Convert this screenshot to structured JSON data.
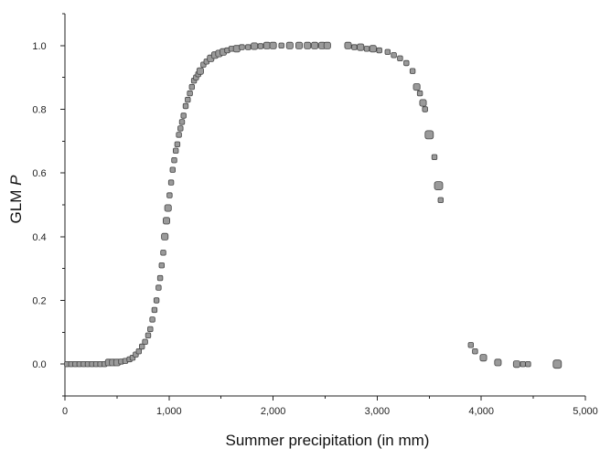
{
  "chart_data": {
    "type": "scatter",
    "title": "",
    "xlabel": "Summer precipitation (in mm)",
    "ylabel_main": "GLM ",
    "ylabel_italic": "P",
    "xlim": [
      0,
      5000
    ],
    "ylim": [
      -0.1,
      1.1
    ],
    "x_ticks": [
      0,
      1000,
      2000,
      3000,
      4000,
      5000
    ],
    "x_tick_labels": [
      "0",
      "1,000",
      "2,000",
      "3,000",
      "4,000",
      "5,000"
    ],
    "y_ticks": [
      0.0,
      0.2,
      0.4,
      0.6,
      0.8,
      1.0
    ],
    "y_tick_labels": [
      "0.0",
      "0.2",
      "0.4",
      "0.6",
      "0.8",
      "1.0"
    ],
    "grid": false,
    "legend": "none",
    "marker_color": "#9a9a9a",
    "marker_edge_color": "#444444",
    "series": [
      {
        "x": [
          20,
          60,
          100,
          140,
          180,
          220,
          260,
          300,
          340,
          380,
          420,
          460,
          500,
          540,
          580,
          620,
          650,
          680,
          710,
          740,
          770,
          800,
          820,
          840,
          860,
          880,
          900,
          915,
          930,
          945,
          960,
          975,
          990,
          1005,
          1020,
          1035,
          1050,
          1065,
          1080,
          1095,
          1110,
          1125,
          1140,
          1160,
          1180,
          1200,
          1220,
          1240,
          1260,
          1280,
          1300,
          1330,
          1360,
          1400,
          1440,
          1480,
          1520,
          1560,
          1600,
          1650,
          1700,
          1760,
          1820,
          1880,
          1940,
          2000,
          2080,
          2160,
          2250,
          2330,
          2400,
          2470,
          2520,
          2720,
          2780,
          2840,
          2900,
          2960,
          3020,
          3100,
          3160,
          3220,
          3280,
          3340,
          3380,
          3410,
          3440,
          3460,
          3500,
          3550,
          3590,
          3610,
          3900,
          3940,
          4020,
          4160,
          4340,
          4400,
          4450,
          4730
        ],
        "y": [
          0.0,
          0.0,
          0.0,
          0.0,
          0.0,
          0.0,
          0.0,
          0.0,
          0.0,
          0.0,
          0.005,
          0.005,
          0.005,
          0.008,
          0.01,
          0.015,
          0.02,
          0.03,
          0.04,
          0.055,
          0.07,
          0.09,
          0.11,
          0.14,
          0.17,
          0.2,
          0.24,
          0.27,
          0.31,
          0.35,
          0.4,
          0.45,
          0.49,
          0.53,
          0.57,
          0.61,
          0.64,
          0.67,
          0.69,
          0.72,
          0.74,
          0.76,
          0.78,
          0.81,
          0.83,
          0.85,
          0.87,
          0.89,
          0.9,
          0.91,
          0.92,
          0.94,
          0.95,
          0.96,
          0.97,
          0.975,
          0.98,
          0.985,
          0.99,
          0.99,
          0.995,
          0.995,
          0.998,
          0.998,
          1.0,
          1.0,
          1.0,
          1.0,
          1.0,
          1.0,
          1.0,
          1.0,
          1.0,
          1.0,
          0.995,
          0.995,
          0.99,
          0.99,
          0.985,
          0.98,
          0.97,
          0.96,
          0.945,
          0.92,
          0.87,
          0.85,
          0.82,
          0.8,
          0.72,
          0.65,
          0.56,
          0.515,
          0.06,
          0.04,
          0.02,
          0.005,
          0.0,
          0.0,
          0.0,
          0.0
        ],
        "size": [
          1,
          1,
          1,
          1,
          1,
          1,
          1,
          1,
          1,
          1,
          2,
          2,
          2,
          1,
          1,
          1,
          1,
          1,
          1,
          1,
          1,
          1,
          1,
          1,
          1,
          1,
          1,
          1,
          1,
          1,
          2,
          2,
          2,
          1,
          1,
          1,
          1,
          1,
          1,
          1,
          1,
          1,
          1,
          1,
          1,
          1,
          1,
          1,
          1,
          1,
          2,
          1,
          1,
          2,
          2,
          2,
          2,
          1,
          1,
          2,
          1,
          1,
          2,
          1,
          2,
          2,
          1,
          2,
          2,
          2,
          2,
          2,
          2,
          2,
          1,
          2,
          1,
          2,
          1,
          1,
          1,
          1,
          1,
          1,
          2,
          1,
          2,
          1,
          3,
          1,
          3,
          1,
          1,
          1,
          2,
          2,
          2,
          1,
          1,
          3
        ]
      }
    ]
  }
}
